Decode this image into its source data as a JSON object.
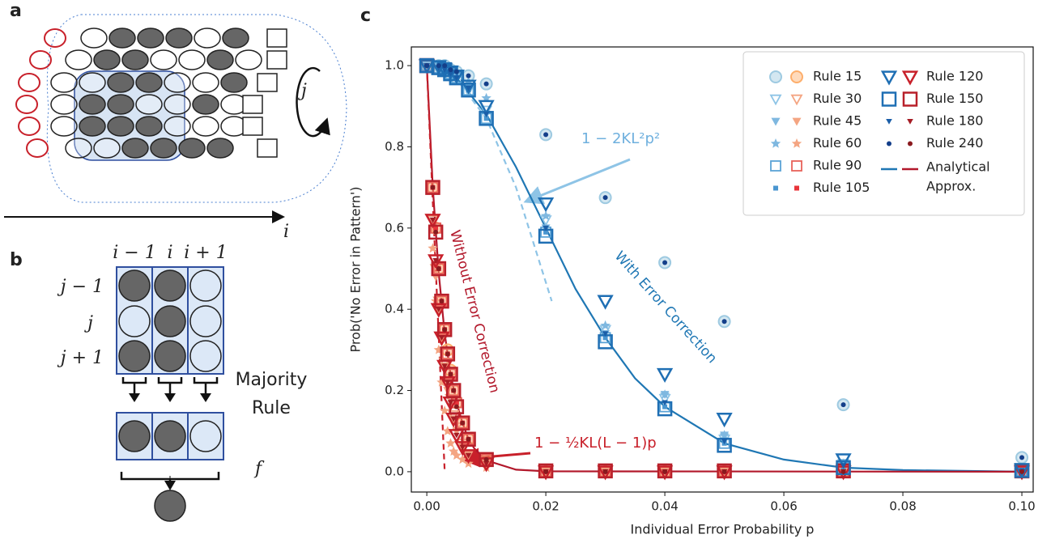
{
  "chart_data": {
    "type": "scatter",
    "panel_label": "c",
    "x_label": "Individual Error Probability p",
    "y_label": "Prob('No Error in Pattern')",
    "xlim": [
      -0.0026,
      0.1019
    ],
    "ylim": [
      -0.05,
      1.046
    ],
    "xticks": [
      {
        "value": 0,
        "label": "0.00"
      },
      {
        "value": 0.02,
        "label": "0.02"
      },
      {
        "value": 0.04,
        "label": "0.04"
      },
      {
        "value": 0.06,
        "label": "0.06"
      },
      {
        "value": 0.08,
        "label": "0.08"
      },
      {
        "value": 0.1,
        "label": "0.10"
      }
    ],
    "yticks": [
      {
        "value": 0,
        "label": "0.0"
      },
      0.2,
      0.4,
      0.6,
      0.8,
      {
        "value": 1,
        "label": "1.0"
      }
    ],
    "x_with": [
      0,
      0.002,
      0.003,
      0.004,
      0.005,
      0.007,
      0.01,
      0.02,
      0.03,
      0.04,
      0.05,
      0.07,
      0.1
    ],
    "x_without": [
      0,
      0.001,
      0.0015,
      0.002,
      0.0025,
      0.003,
      0.0035,
      0.004,
      0.0045,
      0.005,
      0.006,
      0.007,
      0.01,
      0.02,
      0.03,
      0.04,
      0.05,
      0.07,
      0.1
    ],
    "series": [
      {
        "name": "Rule 15",
        "marker": "circle",
        "colors": [
          "#9ecae1",
          "#fdae6b"
        ],
        "with_correction": [
          1,
          1,
          1,
          0.99,
          0.985,
          0.975,
          0.955,
          0.83,
          0.675,
          0.515,
          0.37,
          0.165,
          0.035
        ],
        "without_correction": [
          1,
          0.7,
          0.6,
          0.5,
          0.42,
          0.35,
          0.3,
          0.25,
          0.2,
          0.17,
          0.12,
          0.08,
          0.03,
          0,
          0,
          0,
          0,
          0,
          0
        ]
      },
      {
        "name": "Rule 30",
        "marker": "tri_open",
        "colors": [
          "#8ec4e6",
          "#f4a582"
        ],
        "with_correction": [
          1,
          0.995,
          0.99,
          0.98,
          0.97,
          0.94,
          0.89,
          0.62,
          0.35,
          0.18,
          0.08,
          0.02,
          0.003
        ],
        "without_correction": [
          1,
          0.62,
          0.5,
          0.42,
          0.33,
          0.27,
          0.22,
          0.18,
          0.14,
          0.11,
          0.07,
          0.04,
          0.02,
          0,
          0,
          0,
          0,
          0,
          0
        ]
      },
      {
        "name": "Rule 45",
        "marker": "tri_filled",
        "colors": [
          "#7fb8e0",
          "#f4a582"
        ],
        "with_correction": [
          1,
          0.995,
          0.99,
          0.98,
          0.97,
          0.94,
          0.88,
          0.6,
          0.34,
          0.19,
          0.09,
          0.02,
          0.003
        ],
        "without_correction": [
          1,
          0.6,
          0.48,
          0.4,
          0.32,
          0.26,
          0.2,
          0.16,
          0.13,
          0.1,
          0.06,
          0.04,
          0.02,
          0,
          0,
          0,
          0,
          0,
          0
        ]
      },
      {
        "name": "Rule 60",
        "marker": "star",
        "colors": [
          "#7fb8e0",
          "#f4a582"
        ],
        "with_correction": [
          1,
          0.998,
          0.995,
          0.99,
          0.98,
          0.96,
          0.92,
          0.63,
          0.36,
          0.19,
          0.09,
          0.02,
          0.003
        ],
        "without_correction": [
          1,
          0.55,
          0.42,
          0.3,
          0.22,
          0.15,
          0.1,
          0.07,
          0.05,
          0.04,
          0.03,
          0.02,
          0.01,
          0,
          0,
          0,
          0,
          0,
          0
        ]
      },
      {
        "name": "Rule 90",
        "marker": "square_open",
        "colors": [
          "#5ba3d6",
          "#e8625a"
        ],
        "with_correction": [
          1,
          0.995,
          0.99,
          0.98,
          0.97,
          0.94,
          0.87,
          0.59,
          0.33,
          0.16,
          0.07,
          0.01,
          0.003
        ],
        "without_correction": [
          1,
          0.7,
          0.6,
          0.5,
          0.42,
          0.35,
          0.29,
          0.24,
          0.2,
          0.17,
          0.12,
          0.08,
          0.03,
          0,
          0,
          0,
          0,
          0,
          0
        ]
      },
      {
        "name": "Rule 105",
        "marker": "square_small",
        "colors": [
          "#4a96d0",
          "#e8343a"
        ],
        "with_correction": [
          1,
          0.995,
          0.99,
          0.98,
          0.97,
          0.94,
          0.87,
          0.59,
          0.33,
          0.16,
          0.07,
          0.01,
          0.003
        ],
        "without_correction": [
          1,
          0.7,
          0.6,
          0.5,
          0.42,
          0.35,
          0.29,
          0.24,
          0.2,
          0.17,
          0.12,
          0.08,
          0.03,
          0,
          0,
          0,
          0,
          0,
          0
        ]
      },
      {
        "name": "Rule 120",
        "marker": "tri_open_large",
        "colors": [
          "#1f6fb4",
          "#c8202a"
        ],
        "with_correction": [
          1,
          0.998,
          0.99,
          0.985,
          0.975,
          0.95,
          0.9,
          0.66,
          0.42,
          0.24,
          0.13,
          0.03,
          0.005
        ],
        "without_correction": [
          1,
          0.62,
          0.52,
          0.4,
          0.33,
          0.26,
          0.22,
          0.17,
          0.13,
          0.09,
          0.06,
          0.04,
          0.02,
          0,
          0,
          0,
          0,
          0,
          0
        ]
      },
      {
        "name": "Rule 150",
        "marker": "square_open_large",
        "colors": [
          "#1f6fb4",
          "#b8202a"
        ],
        "with_correction": [
          1,
          0.995,
          0.99,
          0.98,
          0.97,
          0.94,
          0.87,
          0.58,
          0.32,
          0.155,
          0.065,
          0.01,
          0.003
        ],
        "without_correction": [
          1,
          0.7,
          0.59,
          0.5,
          0.42,
          0.35,
          0.29,
          0.24,
          0.2,
          0.16,
          0.12,
          0.08,
          0.03,
          0.002,
          0.002,
          0.002,
          0.002,
          0.002,
          0.002
        ]
      },
      {
        "name": "Rule 180",
        "marker": "tri_small",
        "colors": [
          "#1a5ea8",
          "#a51c24"
        ],
        "with_correction": [
          1,
          0.995,
          0.99,
          0.98,
          0.97,
          0.945,
          0.88,
          0.6,
          0.34,
          0.17,
          0.075,
          0.015,
          0.003
        ],
        "without_correction": [
          1,
          0.62,
          0.52,
          0.4,
          0.33,
          0.26,
          0.22,
          0.17,
          0.13,
          0.09,
          0.06,
          0.04,
          0.02,
          0,
          0,
          0,
          0,
          0,
          0
        ]
      },
      {
        "name": "Rule 240",
        "marker": "dot",
        "colors": [
          "#143f8a",
          "#8a1a1f"
        ],
        "with_correction": [
          1,
          1,
          1,
          0.99,
          0.985,
          0.975,
          0.955,
          0.83,
          0.675,
          0.515,
          0.37,
          0.165,
          0.035
        ],
        "without_correction": [
          1,
          0.7,
          0.59,
          0.5,
          0.42,
          0.35,
          0.29,
          0.24,
          0.2,
          0.16,
          0.12,
          0.08,
          0.03,
          0,
          0,
          0,
          0,
          0,
          0
        ]
      }
    ],
    "lines": [
      {
        "color": "#1f77b4",
        "dashed": false,
        "x": [
          0,
          0.005,
          0.01,
          0.015,
          0.02,
          0.025,
          0.03,
          0.035,
          0.04,
          0.05,
          0.06,
          0.07,
          0.08,
          0.1
        ],
        "values": [
          1,
          0.97,
          0.88,
          0.75,
          0.6,
          0.45,
          0.33,
          0.23,
          0.16,
          0.07,
          0.03,
          0.01,
          0.004,
          0
        ]
      },
      {
        "color": "#8ec4e6",
        "dashed": true,
        "x": [
          0,
          0.005,
          0.01,
          0.015,
          0.021
        ],
        "values": [
          1,
          0.967,
          0.87,
          0.7,
          0.42
        ]
      },
      {
        "color": "#b2182b",
        "dashed": false,
        "x": [
          0,
          0.001,
          0.002,
          0.003,
          0.004,
          0.005,
          0.006,
          0.007,
          0.008,
          0.01,
          0.015,
          0.02,
          0.1
        ],
        "values": [
          1,
          0.7,
          0.49,
          0.34,
          0.24,
          0.17,
          0.12,
          0.08,
          0.057,
          0.028,
          0.005,
          0.001,
          0
        ]
      },
      {
        "color": "#c8202a",
        "dashed": true,
        "x": [
          0,
          0.003
        ],
        "values": [
          1,
          0
        ]
      }
    ],
    "legend_line_label": [
      "Analytical",
      "Approx."
    ],
    "annotations": {
      "with_formula": "1 − 2KL²p²",
      "without_formula": "1 − ½KL(L − 1)p",
      "with_text": "With Error Correction",
      "without_text": "Without Error Correction"
    }
  },
  "diagrams": {
    "panel_a": {
      "label": "a",
      "horizontal_axis": "i",
      "rotation_axis": "j"
    },
    "panel_b": {
      "label": "b",
      "column_labels": [
        "i − 1",
        "i",
        "i + 1"
      ],
      "row_labels": [
        "j − 1",
        "j",
        "j + 1"
      ],
      "rule_label": [
        "Majority",
        "Rule"
      ],
      "function_label": "f"
    }
  }
}
